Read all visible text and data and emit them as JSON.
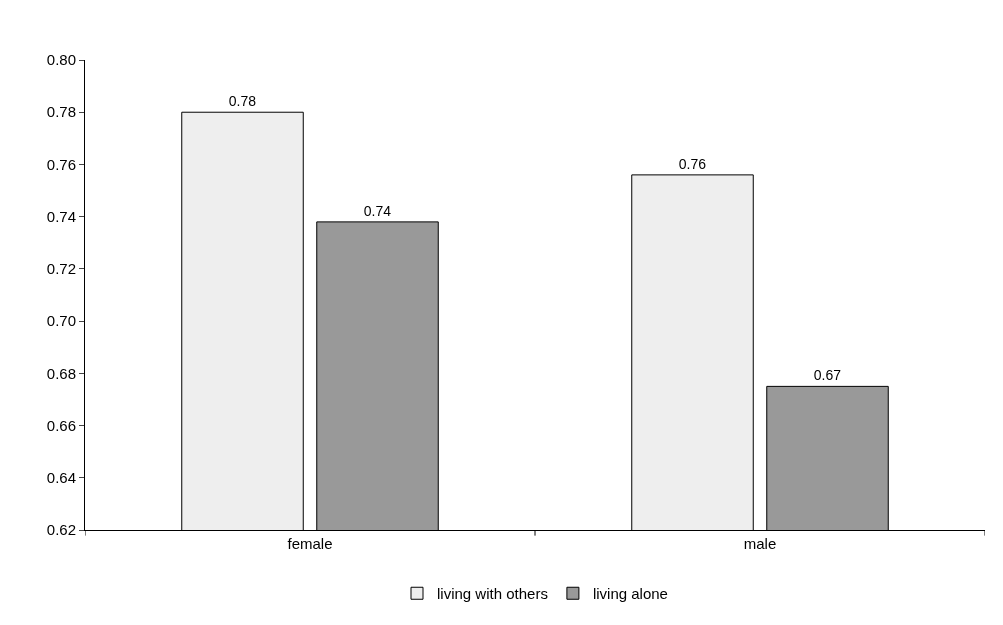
{
  "chart_data": {
    "type": "bar",
    "categories": [
      "female",
      "male"
    ],
    "series": [
      {
        "name": "living with others",
        "color": "#eeeeee",
        "values": [
          0.78,
          0.756
        ],
        "value_labels": [
          "0.78",
          "0.76"
        ]
      },
      {
        "name": "living alone",
        "color": "#999999",
        "values": [
          0.738,
          0.675
        ],
        "value_labels": [
          "0.74",
          "0.67"
        ]
      }
    ],
    "ylim": [
      0.62,
      0.8
    ],
    "yticks": [
      {
        "value": 0.62,
        "label": "0.62"
      },
      {
        "value": 0.64,
        "label": "0.64"
      },
      {
        "value": 0.66,
        "label": "0.66"
      },
      {
        "value": 0.68,
        "label": "0.68"
      },
      {
        "value": 0.7,
        "label": "0.70"
      },
      {
        "value": 0.72,
        "label": "0.72"
      },
      {
        "value": 0.74,
        "label": "0.74"
      },
      {
        "value": 0.76,
        "label": "0.76"
      },
      {
        "value": 0.78,
        "label": "0.78"
      },
      {
        "value": 0.8,
        "label": "0.80"
      }
    ],
    "legend": "bottom"
  }
}
